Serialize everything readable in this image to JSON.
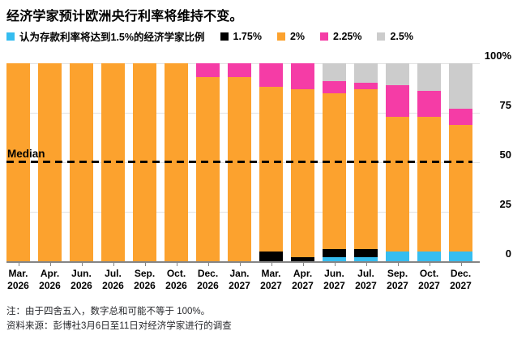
{
  "title": "经济学家预计欧洲央行利率将维持不变。",
  "median_label": "Median",
  "legend": {
    "items": [
      {
        "key": "rate-1-5",
        "label": "认为存款利率将达到1.5%的经济学家比例",
        "color": "#35bdf0"
      },
      {
        "key": "rate-1-75",
        "label": "1.75%",
        "color": "#000000"
      },
      {
        "key": "rate-2",
        "label": "2%",
        "color": "#fca22e"
      },
      {
        "key": "rate-2-25",
        "label": "2.25%",
        "color": "#f53ca6"
      },
      {
        "key": "rate-2-5",
        "label": "2.5%",
        "color": "#cccccc"
      }
    ]
  },
  "chart_data": {
    "type": "bar",
    "stacked": true,
    "unit": "percent of economists",
    "title": "经济学家预计欧洲央行利率将维持不变。",
    "categories": [
      "Mar. 2026",
      "Apr. 2026",
      "Jun. 2026",
      "Jul. 2026",
      "Sep. 2026",
      "Oct. 2026",
      "Dec. 2026",
      "Jan. 2027",
      "Mar. 2027",
      "Apr. 2027",
      "Jun. 2027",
      "Jul. 2027",
      "Sep. 2027",
      "Oct. 2027",
      "Dec. 2027"
    ],
    "series": [
      {
        "name": "认为存款利率将达到1.5%的经济学家比例",
        "color": "#35bdf0",
        "values": [
          0,
          0,
          0,
          0,
          0,
          0,
          0,
          0,
          0,
          0,
          2,
          2,
          5,
          5,
          5
        ]
      },
      {
        "name": "1.75%",
        "color": "#000000",
        "values": [
          0,
          0,
          0,
          0,
          0,
          0,
          0,
          0,
          5,
          2,
          4,
          4,
          0,
          0,
          0
        ]
      },
      {
        "name": "2%",
        "color": "#fca22e",
        "values": [
          100,
          100,
          100,
          100,
          100,
          100,
          93,
          93,
          83,
          85,
          79,
          81,
          68,
          68,
          64
        ]
      },
      {
        "name": "2.25%",
        "color": "#f53ca6",
        "values": [
          0,
          0,
          0,
          0,
          0,
          0,
          7,
          7,
          12,
          13,
          6,
          3,
          16,
          13,
          8
        ]
      },
      {
        "name": "2.5%",
        "color": "#cccccc",
        "values": [
          0,
          0,
          0,
          0,
          0,
          0,
          0,
          0,
          0,
          0,
          9,
          10,
          11,
          14,
          23
        ]
      }
    ],
    "ylim": [
      0,
      100
    ],
    "y_ticks": [
      0,
      25,
      50,
      75,
      100
    ],
    "y_tick_labels": [
      "0",
      "25",
      "50",
      "75",
      "100%"
    ],
    "median_line": 50,
    "legend_position": "top",
    "grid": true
  },
  "notes": {
    "rounding_note": "注：由于四舍五入，数字总和可能不等于 100%。",
    "source_note": "资料来源：彭博社3月6日至11日对经济学家进行的调查"
  }
}
